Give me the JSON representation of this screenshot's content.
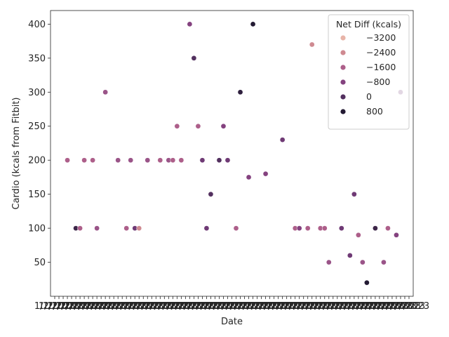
{
  "chart_data": {
    "type": "scatter",
    "xlabel": "Date",
    "ylabel": "Cardio (kcals from Fitbit)",
    "ylim": [
      0,
      420
    ],
    "yticks": [
      50,
      100,
      150,
      200,
      250,
      300,
      350,
      400
    ],
    "x_tick_count": 85,
    "x_tick_labels_note": "dense overlapping date labels ending in ...2023",
    "x_tick_text": "1/2/2023",
    "grid": false,
    "legend": {
      "title": "Net Diff (kcals)",
      "placement": "top-right",
      "entries": [
        {
          "label": "−3200",
          "color": "#e8b4a8"
        },
        {
          "label": "−2400",
          "color": "#cf8a91"
        },
        {
          "label": "−1600",
          "color": "#ad5f8a"
        },
        {
          "label": "−800",
          "color": "#84427f"
        },
        {
          "label": "0",
          "color": "#53305f"
        },
        {
          "label": "800",
          "color": "#231a33"
        }
      ]
    },
    "points": [
      {
        "x": 3,
        "y": 200,
        "c": "#ad5f8a"
      },
      {
        "x": 5,
        "y": 100,
        "c": "#3d2649"
      },
      {
        "x": 6,
        "y": 100,
        "c": "#ad5f8a"
      },
      {
        "x": 7,
        "y": 200,
        "c": "#ad5f8a"
      },
      {
        "x": 9,
        "y": 200,
        "c": "#ad5f8a"
      },
      {
        "x": 10,
        "y": 100,
        "c": "#9a5488"
      },
      {
        "x": 12,
        "y": 300,
        "c": "#9a5488"
      },
      {
        "x": 15,
        "y": 200,
        "c": "#9a5488"
      },
      {
        "x": 17,
        "y": 100,
        "c": "#ad5f8a"
      },
      {
        "x": 18,
        "y": 200,
        "c": "#9a5488"
      },
      {
        "x": 19,
        "y": 100,
        "c": "#6f3a75"
      },
      {
        "x": 20,
        "y": 100,
        "c": "#cf8a91"
      },
      {
        "x": 22,
        "y": 200,
        "c": "#9a5488"
      },
      {
        "x": 25,
        "y": 200,
        "c": "#ad5f8a"
      },
      {
        "x": 27,
        "y": 200,
        "c": "#9a5488"
      },
      {
        "x": 28,
        "y": 200,
        "c": "#ad5f8a"
      },
      {
        "x": 29,
        "y": 250,
        "c": "#ad5f8a"
      },
      {
        "x": 30,
        "y": 200,
        "c": "#ad5f8a"
      },
      {
        "x": 32,
        "y": 400,
        "c": "#84427f"
      },
      {
        "x": 33,
        "y": 350,
        "c": "#53305f"
      },
      {
        "x": 34,
        "y": 250,
        "c": "#ad5f8a"
      },
      {
        "x": 35,
        "y": 200,
        "c": "#6f3a75"
      },
      {
        "x": 36,
        "y": 100,
        "c": "#6f3a75"
      },
      {
        "x": 37,
        "y": 150,
        "c": "#53305f"
      },
      {
        "x": 39,
        "y": 200,
        "c": "#53305f"
      },
      {
        "x": 40,
        "y": 250,
        "c": "#84427f"
      },
      {
        "x": 41,
        "y": 200,
        "c": "#6f3a75"
      },
      {
        "x": 43,
        "y": 100,
        "c": "#ad5f8a"
      },
      {
        "x": 44,
        "y": 300,
        "c": "#2e1f3d"
      },
      {
        "x": 46,
        "y": 175,
        "c": "#84427f"
      },
      {
        "x": 47,
        "y": 400,
        "c": "#231a33"
      },
      {
        "x": 50,
        "y": 180,
        "c": "#84427f"
      },
      {
        "x": 54,
        "y": 230,
        "c": "#6f3a75"
      },
      {
        "x": 57,
        "y": 100,
        "c": "#ad5f8a"
      },
      {
        "x": 58,
        "y": 100,
        "c": "#84427f"
      },
      {
        "x": 60,
        "y": 100,
        "c": "#ad5f8a"
      },
      {
        "x": 61,
        "y": 370,
        "c": "#cf8a91"
      },
      {
        "x": 63,
        "y": 100,
        "c": "#ad5f8a"
      },
      {
        "x": 64,
        "y": 100,
        "c": "#ad5f8a"
      },
      {
        "x": 65,
        "y": 50,
        "c": "#9a5488"
      },
      {
        "x": 68,
        "y": 100,
        "c": "#6f3a75"
      },
      {
        "x": 70,
        "y": 60,
        "c": "#6f3a75"
      },
      {
        "x": 71,
        "y": 150,
        "c": "#6f3a75"
      },
      {
        "x": 72,
        "y": 90,
        "c": "#ad5f8a"
      },
      {
        "x": 73,
        "y": 50,
        "c": "#9a5488"
      },
      {
        "x": 74,
        "y": 20,
        "c": "#231a33"
      },
      {
        "x": 76,
        "y": 100,
        "c": "#3d2649"
      },
      {
        "x": 78,
        "y": 50,
        "c": "#9a5488"
      },
      {
        "x": 79,
        "y": 100,
        "c": "#ad5f8a"
      },
      {
        "x": 81,
        "y": 90,
        "c": "#84427f"
      },
      {
        "x": 82,
        "y": 300,
        "c": "#6f3a75"
      }
    ]
  }
}
